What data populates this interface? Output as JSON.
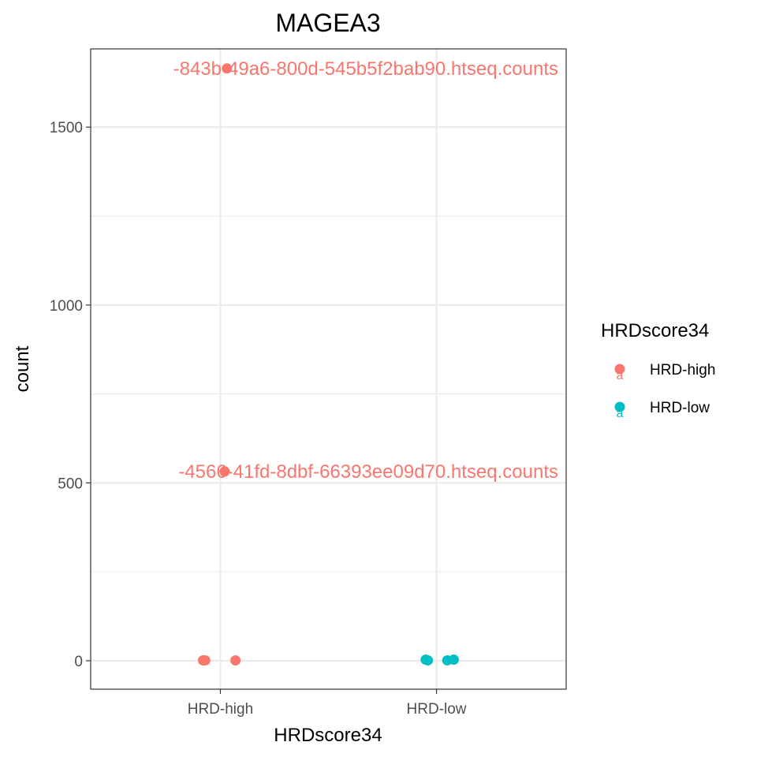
{
  "chart_data": {
    "type": "scatter",
    "title": "MAGEA3",
    "xlabel": "HRDscore34",
    "ylabel": "count",
    "categories": [
      "HRD-high",
      "HRD-low"
    ],
    "ylim": [
      -80,
      1720
    ],
    "y_ticks": [
      0,
      500,
      1000,
      1500
    ],
    "y_tick_labels": [
      "0",
      "500",
      "1000",
      "1500"
    ],
    "grid": true,
    "legend": {
      "title": "HRDscore34",
      "placement": "right",
      "key_glyph": "a",
      "entries": [
        {
          "label": "HRD-high",
          "color": "#F8766D"
        },
        {
          "label": "HRD-low",
          "color": "#00BFC4"
        }
      ]
    },
    "series": [
      {
        "name": "HRD-high",
        "color": "#F8766D",
        "points": [
          {
            "category": "HRD-high",
            "jitter": 0.03,
            "y": 1665
          },
          {
            "category": "HRD-high",
            "jitter": 0.02,
            "y": 532
          },
          {
            "category": "HRD-high",
            "jitter": -0.08,
            "y": 1
          },
          {
            "category": "HRD-high",
            "jitter": -0.07,
            "y": 1
          },
          {
            "category": "HRD-high",
            "jitter": 0.07,
            "y": 1
          }
        ]
      },
      {
        "name": "HRD-low",
        "color": "#00BFC4",
        "points": [
          {
            "category": "HRD-low",
            "jitter": -0.05,
            "y": 3
          },
          {
            "category": "HRD-low",
            "jitter": -0.04,
            "y": 1
          },
          {
            "category": "HRD-low",
            "jitter": 0.05,
            "y": 1
          },
          {
            "category": "HRD-low",
            "jitter": 0.08,
            "y": 3
          }
        ]
      }
    ],
    "annotations": [
      {
        "text": "-843b-49a6-800d-545b5f2bab90.htseq.counts",
        "y": 1665,
        "color": "#F8766D"
      },
      {
        "text": "-4566-41fd-8dbf-66393ee09d70.htseq.counts",
        "y": 532,
        "color": "#F8766D"
      }
    ]
  }
}
